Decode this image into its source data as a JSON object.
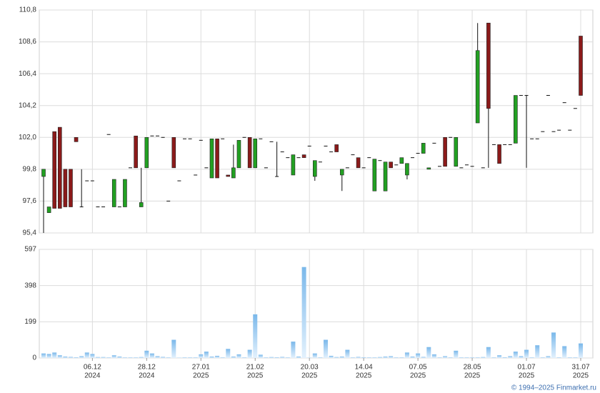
{
  "chart_data": {
    "type": "candlestick",
    "categories": [
      null,
      null,
      null,
      null,
      null,
      null,
      null,
      null,
      null,
      "06.12",
      null,
      null,
      null,
      null,
      null,
      null,
      null,
      null,
      null,
      "28.12",
      null,
      null,
      null,
      null,
      null,
      null,
      null,
      null,
      null,
      "27.01",
      null,
      null,
      null,
      null,
      null,
      null,
      null,
      null,
      null,
      "21.02",
      null,
      null,
      null,
      null,
      null,
      null,
      null,
      null,
      null,
      "20.03",
      null,
      null,
      null,
      null,
      null,
      null,
      null,
      null,
      null,
      "14.04",
      null,
      null,
      null,
      null,
      null,
      null,
      null,
      null,
      null,
      "07.05",
      null,
      null,
      null,
      null,
      null,
      null,
      null,
      null,
      null,
      "28.05",
      null,
      null,
      null,
      null,
      null,
      null,
      null,
      null,
      null,
      "01.07",
      null,
      null,
      null,
      null,
      null,
      null,
      null,
      null,
      null,
      "31.07"
    ],
    "category_years": [
      null,
      null,
      null,
      null,
      null,
      null,
      null,
      null,
      null,
      "2024",
      null,
      null,
      null,
      null,
      null,
      null,
      null,
      null,
      null,
      "2024",
      null,
      null,
      null,
      null,
      null,
      null,
      null,
      null,
      null,
      "2025",
      null,
      null,
      null,
      null,
      null,
      null,
      null,
      null,
      null,
      "2025",
      null,
      null,
      null,
      null,
      null,
      null,
      null,
      null,
      null,
      "2025",
      null,
      null,
      null,
      null,
      null,
      null,
      null,
      null,
      null,
      "2025",
      null,
      null,
      null,
      null,
      null,
      null,
      null,
      null,
      null,
      "2025",
      null,
      null,
      null,
      null,
      null,
      null,
      null,
      null,
      null,
      "2025",
      null,
      null,
      null,
      null,
      null,
      null,
      null,
      null,
      null,
      "2025",
      null,
      null,
      null,
      null,
      null,
      null,
      null,
      null,
      null,
      "2025"
    ],
    "open": [
      99.3,
      96.8,
      102.4,
      102.7,
      99.8,
      99.8,
      102.0,
      97.2,
      99.0,
      99.0,
      97.2,
      97.2,
      102.2,
      97.2,
      97.2,
      97.2,
      99.9,
      102.1,
      97.2,
      99.9,
      102.1,
      102.1,
      102.0,
      97.6,
      102.0,
      99.0,
      101.9,
      101.9,
      99.4,
      101.8,
      99.9,
      99.2,
      101.9,
      101.9,
      99.4,
      99.2,
      99.9,
      102.0,
      102.0,
      99.9,
      101.9,
      99.9,
      101.7,
      99.3,
      101.0,
      100.6,
      99.4,
      100.6,
      100.8,
      101.4,
      99.3,
      100.3,
      101.4,
      101.0,
      101.5,
      99.4,
      99.9,
      100.8,
      100.6,
      99.9,
      100.6,
      98.3,
      100.4,
      98.3,
      100.3,
      100.1,
      100.2,
      99.4,
      100.6,
      100.9,
      100.9,
      99.8,
      101.6,
      100.0,
      102.0,
      102.0,
      100.0,
      99.9,
      100.1,
      100.0,
      103.0,
      99.9,
      109.9,
      101.5,
      101.5,
      101.5,
      101.5,
      101.6,
      104.9,
      104.9,
      101.9,
      101.9,
      102.4,
      104.9,
      102.4,
      102.5,
      104.4,
      102.5,
      104.0,
      109.0
    ],
    "high": [
      99.8,
      97.2,
      102.4,
      102.7,
      99.8,
      99.8,
      102.0,
      99.8,
      99.0,
      99.0,
      97.2,
      97.2,
      102.2,
      99.1,
      97.2,
      99.1,
      99.9,
      102.1,
      99.9,
      102.0,
      102.1,
      102.1,
      102.0,
      97.6,
      102.0,
      99.0,
      101.9,
      101.9,
      99.4,
      101.8,
      99.9,
      101.9,
      101.9,
      101.9,
      99.4,
      101.5,
      101.8,
      102.0,
      102.0,
      101.9,
      101.9,
      99.9,
      101.7,
      101.7,
      101.0,
      100.6,
      100.8,
      100.6,
      100.8,
      101.4,
      100.4,
      100.3,
      101.4,
      101.0,
      101.5,
      99.8,
      99.9,
      100.8,
      100.6,
      99.9,
      100.6,
      100.5,
      100.4,
      100.3,
      100.3,
      100.1,
      100.6,
      100.2,
      100.6,
      100.9,
      101.6,
      99.9,
      101.6,
      100.0,
      102.0,
      102.0,
      102.0,
      99.9,
      100.1,
      100.0,
      109.9,
      99.9,
      109.9,
      101.5,
      101.5,
      101.5,
      101.5,
      104.9,
      104.9,
      104.9,
      101.9,
      101.9,
      102.4,
      104.9,
      102.4,
      102.5,
      104.4,
      102.5,
      104.0,
      109.0
    ],
    "low": [
      95.4,
      96.8,
      97.1,
      97.1,
      97.2,
      97.2,
      101.7,
      97.2,
      99.0,
      99.0,
      97.2,
      97.2,
      102.2,
      97.2,
      97.2,
      97.2,
      99.9,
      99.9,
      97.2,
      99.9,
      102.1,
      102.1,
      102.0,
      97.6,
      99.9,
      99.0,
      101.9,
      101.9,
      99.4,
      101.8,
      99.9,
      99.2,
      99.2,
      101.9,
      99.3,
      99.2,
      99.9,
      102.0,
      99.9,
      99.9,
      101.9,
      99.9,
      101.7,
      99.3,
      101.0,
      100.6,
      99.4,
      100.6,
      100.6,
      101.4,
      99.0,
      100.3,
      101.4,
      101.0,
      101.0,
      98.3,
      99.9,
      100.8,
      99.9,
      99.9,
      100.6,
      98.3,
      100.4,
      98.3,
      99.9,
      100.1,
      100.2,
      99.1,
      100.6,
      100.9,
      100.9,
      99.8,
      101.6,
      100.0,
      100.0,
      102.0,
      100.0,
      99.9,
      100.1,
      100.0,
      103.0,
      99.9,
      99.9,
      101.5,
      100.2,
      101.5,
      101.5,
      101.6,
      104.9,
      99.9,
      101.9,
      101.9,
      102.4,
      104.9,
      102.4,
      102.5,
      104.4,
      102.5,
      104.0,
      104.9
    ],
    "close": [
      99.8,
      97.2,
      97.1,
      97.1,
      97.2,
      97.2,
      101.7,
      97.2,
      99.0,
      99.0,
      97.2,
      97.2,
      102.2,
      99.1,
      97.2,
      99.1,
      99.9,
      99.9,
      97.5,
      102.0,
      102.1,
      102.1,
      102.0,
      97.6,
      99.9,
      99.0,
      101.9,
      101.9,
      99.4,
      101.8,
      99.9,
      101.9,
      99.2,
      101.9,
      99.3,
      99.9,
      101.8,
      102.0,
      99.9,
      101.9,
      101.9,
      99.9,
      101.7,
      99.3,
      101.0,
      100.6,
      100.8,
      100.6,
      100.6,
      101.4,
      100.4,
      100.3,
      101.4,
      101.0,
      101.0,
      99.8,
      99.9,
      100.8,
      99.9,
      99.9,
      100.6,
      100.5,
      100.4,
      100.3,
      99.9,
      100.1,
      100.6,
      100.2,
      100.6,
      100.9,
      101.6,
      99.9,
      101.6,
      100.0,
      100.0,
      102.0,
      102.0,
      99.9,
      100.1,
      100.0,
      108.0,
      99.9,
      104.0,
      101.5,
      100.2,
      101.5,
      101.5,
      104.9,
      104.9,
      104.9,
      101.9,
      101.9,
      102.4,
      104.9,
      102.4,
      102.5,
      104.4,
      102.5,
      104.0,
      104.9
    ],
    "volume": [
      25,
      22,
      30,
      15,
      8,
      6,
      4,
      10,
      30,
      22,
      5,
      5,
      3,
      15,
      8,
      3,
      3,
      3,
      5,
      40,
      25,
      10,
      6,
      3,
      100,
      2,
      3,
      3,
      3,
      20,
      35,
      8,
      12,
      3,
      50,
      8,
      20,
      3,
      45,
      240,
      18,
      3,
      5,
      4,
      6,
      3,
      90,
      8,
      500,
      2,
      25,
      3,
      100,
      12,
      5,
      8,
      45,
      3,
      6,
      4,
      3,
      3,
      5,
      8,
      10,
      3,
      3,
      30,
      8,
      25,
      6,
      60,
      20,
      3,
      10,
      3,
      40,
      3,
      3,
      3,
      3,
      5,
      60,
      3,
      15,
      4,
      10,
      35,
      10,
      45,
      3,
      70,
      3,
      10,
      140,
      3,
      65,
      3,
      3,
      80
    ],
    "up_color": "#22a022",
    "down_color": "#8b1a1a",
    "volume_color": "#7ab8ea",
    "ylim": [
      95.4,
      110.8
    ],
    "yticks": [
      {
        "value": 95.4,
        "label": "95,4"
      },
      {
        "value": 97.6,
        "label": "97,6"
      },
      {
        "value": 99.8,
        "label": "99,8"
      },
      {
        "value": 102.0,
        "label": "102,0"
      },
      {
        "value": 104.2,
        "label": "104,2"
      },
      {
        "value": 106.4,
        "label": "106,4"
      },
      {
        "value": 108.6,
        "label": "108,6"
      },
      {
        "value": 110.8,
        "label": "110,8"
      }
    ],
    "y2lim": [
      0,
      597
    ],
    "y2ticks": [
      0,
      199,
      398,
      597
    ],
    "grid": true,
    "credit": "© 1994–2025 Finmarket.ru"
  }
}
